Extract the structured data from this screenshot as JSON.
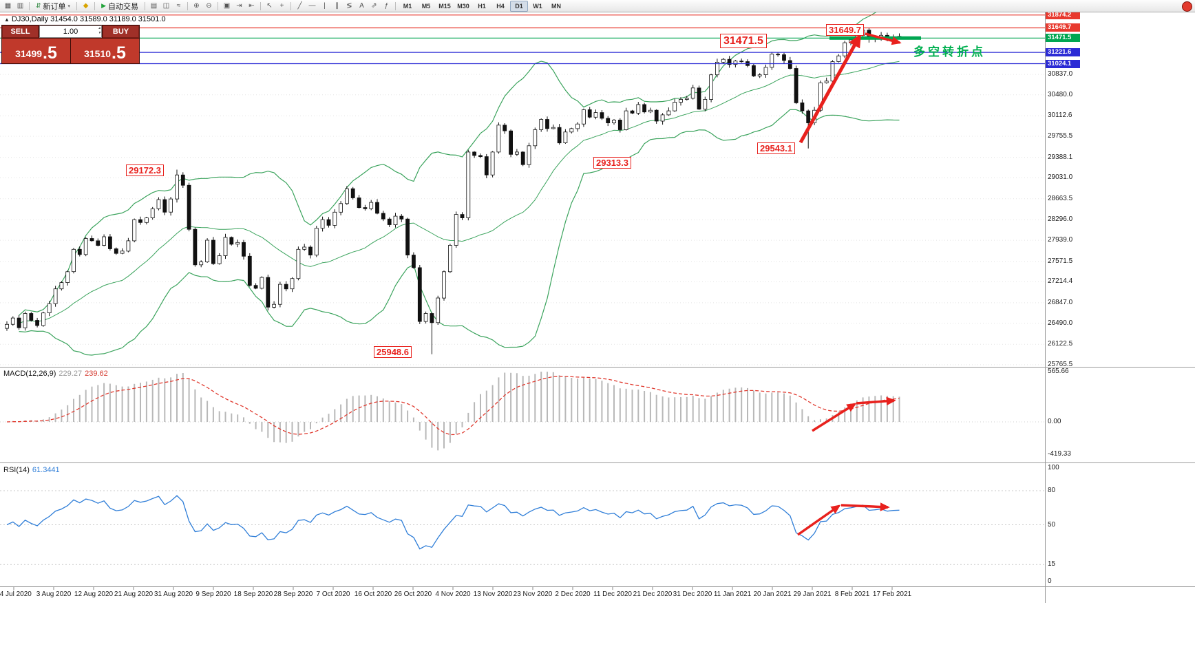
{
  "window": {
    "app": "MetaTrader",
    "chart_symbol": "DJ30",
    "chart_period": "Daily"
  },
  "toolbar": {
    "timeframes": [
      "M1",
      "M5",
      "M15",
      "M30",
      "H1",
      "H4",
      "D1",
      "W1",
      "MN"
    ],
    "active_timeframe": "D1",
    "new_order_label": "新订单",
    "autotrade_label": "自动交易",
    "icon_groups": [
      [
        {
          "n": "new-chart-icon",
          "g": "▦"
        },
        {
          "n": "profiles-icon",
          "g": "▥"
        }
      ],
      [
        {
          "n": "new-order-button",
          "g": "⇵",
          "label_key": "new_order_label",
          "caret": "▾",
          "c": "#1d7d2f"
        }
      ],
      [
        {
          "n": "sound-alerts-icon",
          "g": "◆",
          "c": "#d8a400"
        }
      ],
      [
        {
          "n": "autotrade-button",
          "g": "▶",
          "label_key": "autotrade_label",
          "c": "#23a33a"
        }
      ],
      [
        {
          "n": "bar-chart-icon",
          "g": "▤"
        },
        {
          "n": "candlestick-chart-icon",
          "g": "◫"
        },
        {
          "n": "line-chart-icon",
          "g": "≈"
        }
      ],
      [
        {
          "n": "zoom-in-icon",
          "g": "⊕"
        },
        {
          "n": "zoom-out-icon",
          "g": "⊖"
        }
      ],
      [
        {
          "n": "tile-windows-icon",
          "g": "▣"
        },
        {
          "n": "autoscroll-icon",
          "g": "⇥"
        },
        {
          "n": "chart-shift-icon",
          "g": "⇤"
        }
      ],
      [
        {
          "n": "cursor-icon",
          "g": "↖"
        },
        {
          "n": "crosshair-icon",
          "g": "+"
        }
      ],
      [
        {
          "n": "trendline-icon",
          "g": "╱"
        },
        {
          "n": "horizontal-line-icon",
          "g": "―"
        },
        {
          "n": "vertical-line-icon",
          "g": "|"
        },
        {
          "n": "equidistant-channel-icon",
          "g": "∥"
        },
        {
          "n": "fibonacci-icon",
          "g": "≶"
        },
        {
          "n": "text-tool-icon",
          "g": "A"
        },
        {
          "n": "arrow-objects-icon",
          "g": "⇗"
        },
        {
          "n": "indicators-icon",
          "g": "ƒ"
        }
      ]
    ]
  },
  "trade_panel": {
    "sell_label": "SELL",
    "buy_label": "BUY",
    "volume": "1.00",
    "sell_price": {
      "main": "31499",
      "frac": ".5"
    },
    "buy_price": {
      "main": "31510",
      "frac": ".5"
    }
  },
  "chart": {
    "ohlc_title": "DJ30,Daily  31454.0 31589.0 31189.0 31501.0",
    "levels": [
      {
        "price": 31874.2,
        "label": "31874.2",
        "color": "#e8392e",
        "type": "resistance"
      },
      {
        "price": 31649.7,
        "label": "31649.7",
        "color": "#e8392e",
        "type": "resistance"
      },
      {
        "price": 31471.5,
        "label": "31471.5",
        "color": "#00a651",
        "type": "pivot"
      },
      {
        "price": 31221.6,
        "label": "31221.6",
        "color": "#2b2bd5",
        "type": "support"
      },
      {
        "price": 31024.1,
        "label": "31024.1",
        "color": "#2b2bd5",
        "type": "support"
      }
    ],
    "axis_prices": [
      30837.0,
      30480.0,
      30112.6,
      29755.5,
      29388.1,
      29031.0,
      28663.5,
      28296.0,
      27939.0,
      27571.5,
      27214.4,
      26847.0,
      26490.0,
      26122.5,
      25765.5
    ],
    "dates": [
      "24 Jul 2020",
      "3 Aug 2020",
      "12 Aug 2020",
      "21 Aug 2020",
      "31 Aug 2020",
      "9 Sep 2020",
      "18 Sep 2020",
      "28 Sep 2020",
      "7 Oct 2020",
      "16 Oct 2020",
      "26 Oct 2020",
      "4 Nov 2020",
      "13 Nov 2020",
      "23 Nov 2020",
      "2 Dec 2020",
      "11 Dec 2020",
      "21 Dec 2020",
      "31 Dec 2020",
      "11 Jan 2021",
      "20 Jan 2021",
      "29 Jan 2021",
      "8 Feb 2021",
      "17 Feb 2021"
    ],
    "annotations": {
      "peak_aug": "29172.3",
      "low_oct": "25948.6",
      "level_nov": "29313.3",
      "low_jan": "29543.1",
      "high_feb": "31649.7",
      "pivot_price": "31471.5",
      "turning_point_text": "多空转折点"
    }
  },
  "macd": {
    "name": "MACD(12,26,9)",
    "value_main": "229.27",
    "value_signal": "239.62",
    "axis_max": "565.66",
    "axis_zero": "0.00",
    "axis_min": "-419.33"
  },
  "rsi": {
    "name": "RSI(14)",
    "value": "61.3441",
    "axis": [
      "100",
      "80",
      "50",
      "15",
      "0"
    ],
    "levels": [
      80,
      50,
      15
    ]
  },
  "chart_data": {
    "type": "candlestick",
    "symbol": "DJ30",
    "period": "Daily",
    "price_axis_range": [
      25765.5,
      31874.2
    ],
    "indicators": {
      "bollinger": "(20,2)",
      "macd": "(12,26,9)",
      "rsi": "(14)"
    },
    "closes": [
      26470,
      26580,
      26410,
      26660,
      26540,
      26450,
      26670,
      26830,
      27090,
      27200,
      27390,
      27780,
      27690,
      27970,
      27930,
      27850,
      28000,
      27790,
      27710,
      27750,
      27930,
      28300,
      28250,
      28330,
      28490,
      28650,
      28430,
      28660,
      29080,
      28900,
      28130,
      27510,
      27560,
      27940,
      27530,
      27670,
      27990,
      27870,
      27900,
      27660,
      27150,
      27100,
      27290,
      26770,
      26820,
      27170,
      27090,
      27270,
      27780,
      27820,
      27680,
      28150,
      28300,
      28200,
      28430,
      28580,
      28840,
      28680,
      28510,
      28490,
      28600,
      28410,
      28310,
      28210,
      28360,
      28310,
      27680,
      27460,
      26520,
      26660,
      26500,
      26930,
      27390,
      27850,
      28390,
      28330,
      29480,
      29420,
      29400,
      29080,
      29480,
      29950,
      29850,
      29440,
      29480,
      29260,
      29590,
      29870,
      30050,
      29890,
      29910,
      29640,
      29830,
      29890,
      29970,
      30220,
      30090,
      30170,
      30070,
      29990,
      30040,
      29870,
      30200,
      30160,
      30310,
      30180,
      30210,
      30020,
      30130,
      30200,
      30350,
      30400,
      30420,
      30600,
      30230,
      30400,
      30830,
      31050,
      31100,
      31010,
      31070,
      31060,
      30990,
      30810,
      30830,
      30960,
      31190,
      31180,
      31080,
      30940,
      30340,
      30200,
      29990,
      30210,
      30690,
      30720,
      31060,
      31160,
      31390,
      31440,
      31520,
      31610,
      31450,
      31480,
      31520,
      31460,
      31490,
      31501
    ],
    "extremes": [
      {
        "index": 28,
        "high": 29172.3
      },
      {
        "index": 70,
        "low": 25948.6
      },
      {
        "index": 132,
        "low": 29543.1
      },
      {
        "index": 141,
        "high": 31649.7
      }
    ]
  }
}
